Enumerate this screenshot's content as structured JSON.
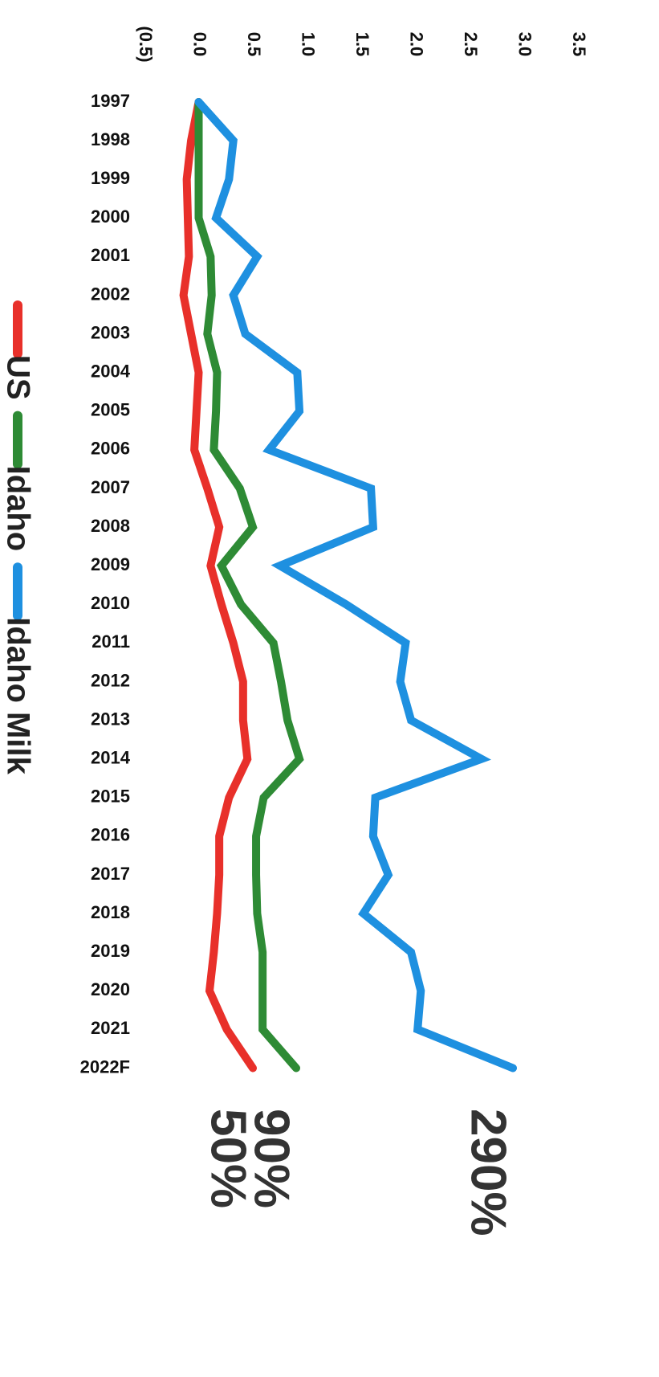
{
  "chart_data": {
    "type": "line",
    "orientation": "vertical",
    "categories": [
      "1997",
      "1998",
      "1999",
      "2000",
      "2001",
      "2002",
      "2003",
      "2004",
      "2005",
      "2006",
      "2007",
      "2008",
      "2009",
      "2010",
      "2011",
      "2012",
      "2013",
      "2014",
      "2015",
      "2016",
      "2017",
      "2018",
      "2019",
      "2020",
      "2021",
      "2022F"
    ],
    "series": [
      {
        "name": "US",
        "color": "#e8302a",
        "values": [
          0,
          -0.07,
          -0.11,
          -0.1,
          -0.09,
          -0.14,
          -0.07,
          0,
          -0.02,
          -0.04,
          0.08,
          0.19,
          0.11,
          0.21,
          0.32,
          0.41,
          0.41,
          0.45,
          0.28,
          0.19,
          0.19,
          0.17,
          0.14,
          0.1,
          0.26,
          0.5
        ]
      },
      {
        "name": "Idaho",
        "color": "#2e8b35",
        "values": [
          0,
          0,
          0,
          0,
          0.11,
          0.12,
          0.08,
          0.17,
          0.16,
          0.14,
          0.38,
          0.5,
          0.21,
          0.39,
          0.69,
          0.76,
          0.82,
          0.93,
          0.6,
          0.53,
          0.53,
          0.54,
          0.59,
          0.59,
          0.59,
          0.9
        ]
      },
      {
        "name": "Idaho Milk",
        "color": "#1e90e0",
        "values": [
          0,
          0.32,
          0.28,
          0.16,
          0.54,
          0.32,
          0.43,
          0.91,
          0.93,
          0.65,
          1.59,
          1.61,
          0.75,
          1.36,
          1.91,
          1.86,
          1.96,
          2.61,
          1.63,
          1.61,
          1.75,
          1.52,
          1.96,
          2.05,
          2.02,
          2.9
        ]
      }
    ],
    "annotations": [
      "50%",
      "90%",
      "290%"
    ],
    "ylim": [
      -0.5,
      3.5
    ],
    "yticks": [
      {
        "value": -0.5,
        "label": "(0.5)"
      },
      {
        "value": 0,
        "label": "0.0"
      },
      0.5,
      {
        "value": 1,
        "label": "1.0"
      },
      1.5,
      {
        "value": 2,
        "label": "2.0"
      },
      2.5,
      {
        "value": 3,
        "label": "3.0"
      },
      3.5
    ],
    "grid": false
  }
}
